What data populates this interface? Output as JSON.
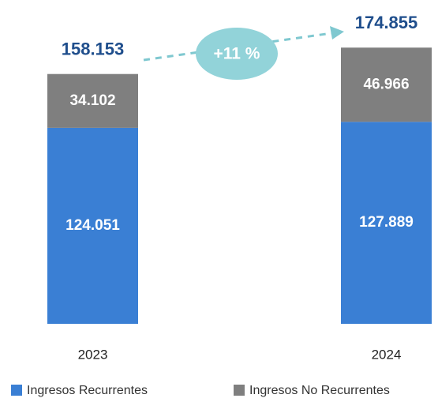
{
  "chart_data": {
    "type": "stacked-bar",
    "categories": [
      "2023",
      "2024"
    ],
    "series": [
      {
        "name": "Ingresos Recurrentes",
        "color": "#3a7fd4",
        "values": [
          124.051,
          127.889
        ]
      },
      {
        "name": "Ingresos No Recurrentes",
        "color": "#7f7f7f",
        "values": [
          34.102,
          46.966
        ]
      }
    ],
    "totals": [
      158.153,
      174.855
    ],
    "annotation": "+11 %"
  }
}
